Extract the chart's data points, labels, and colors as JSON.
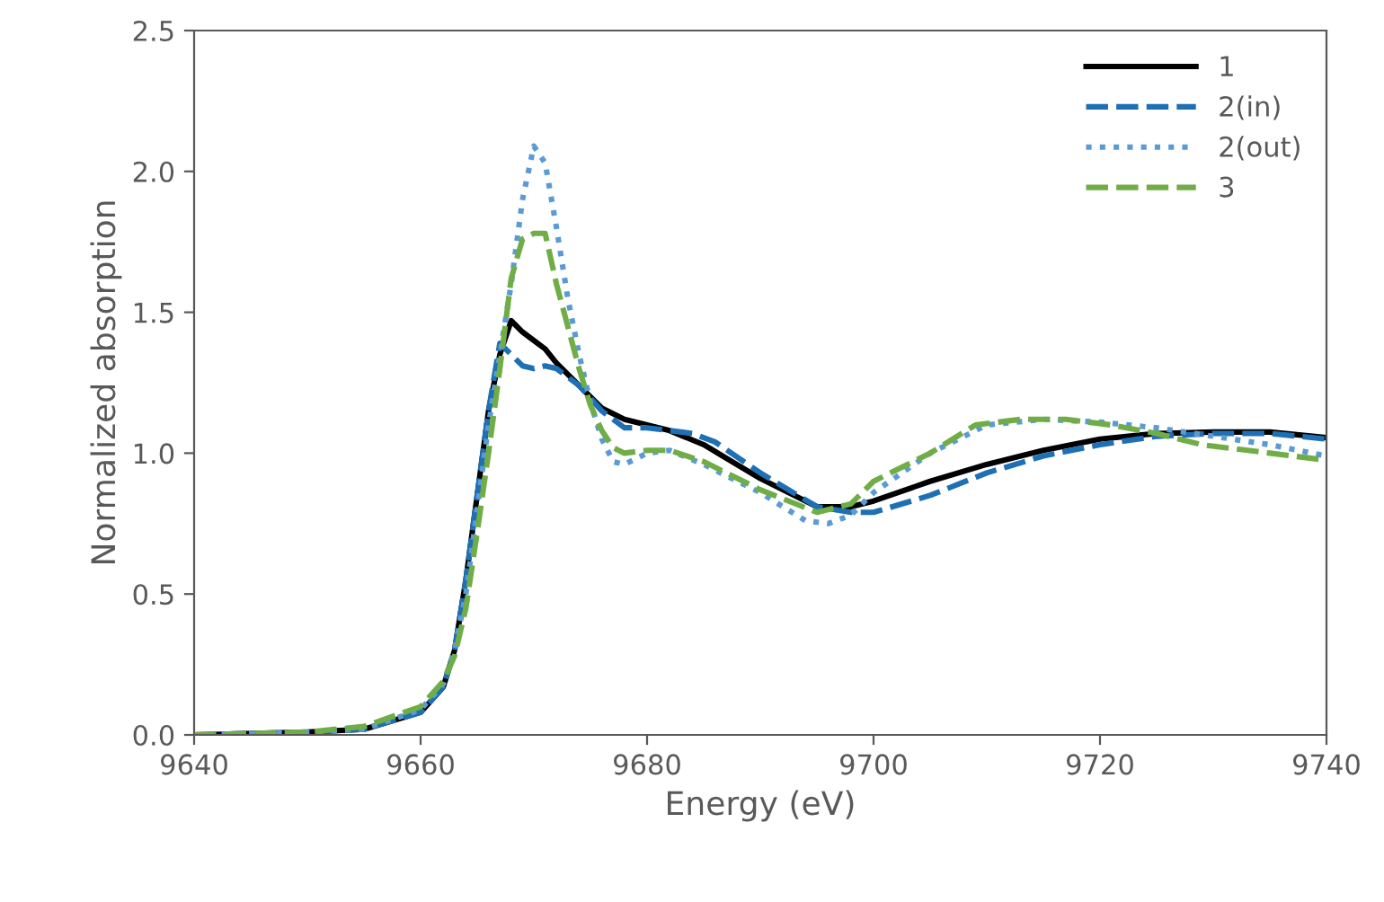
{
  "chart_data": {
    "type": "line",
    "xlabel": "Energy (eV)",
    "ylabel": "Normalized absorption",
    "xlim": [
      9640,
      9740
    ],
    "xticks": [
      9640,
      9660,
      9680,
      9700,
      9720,
      9740
    ],
    "ylim": [
      0,
      2.5
    ],
    "yticks": [
      {
        "value": 0,
        "label": "0.0"
      },
      {
        "value": 0.5,
        "label": "0.5"
      },
      {
        "value": 1,
        "label": "1.0"
      },
      {
        "value": 1.5,
        "label": "1.5"
      },
      {
        "value": 2,
        "label": "2.0"
      },
      {
        "value": 2.5,
        "label": "2.5"
      }
    ],
    "grid": false,
    "legend": "top right",
    "series": [
      {
        "name": "1",
        "color": "#000000",
        "line_style": "solid",
        "x": [
          9640,
          9650,
          9655,
          9660,
          9662,
          9663,
          9664,
          9665,
          9666,
          9667,
          9668,
          9669,
          9670,
          9671,
          9672,
          9674,
          9676,
          9678,
          9680,
          9682,
          9685,
          9690,
          9695,
          9698,
          9700,
          9705,
          9710,
          9715,
          9720,
          9725,
          9730,
          9735,
          9740
        ],
        "values": [
          0.0,
          0.01,
          0.02,
          0.08,
          0.17,
          0.3,
          0.55,
          0.85,
          1.15,
          1.35,
          1.47,
          1.43,
          1.4,
          1.37,
          1.32,
          1.24,
          1.16,
          1.12,
          1.1,
          1.08,
          1.03,
          0.91,
          0.81,
          0.81,
          0.83,
          0.9,
          0.96,
          1.01,
          1.05,
          1.07,
          1.075,
          1.075,
          1.055
        ]
      },
      {
        "name": "2(in)",
        "color": "#1f6fb4",
        "line_style": "dashed",
        "x": [
          9640,
          9650,
          9655,
          9660,
          9662,
          9663,
          9664,
          9665,
          9666,
          9667,
          9668,
          9669,
          9670,
          9671,
          9672,
          9674,
          9676,
          9678,
          9680,
          9684,
          9686,
          9690,
          9695,
          9698,
          9700,
          9705,
          9710,
          9715,
          9720,
          9725,
          9730,
          9735,
          9740
        ],
        "values": [
          0.0,
          0.01,
          0.02,
          0.08,
          0.17,
          0.3,
          0.55,
          0.85,
          1.15,
          1.39,
          1.35,
          1.31,
          1.3,
          1.31,
          1.3,
          1.24,
          1.15,
          1.09,
          1.09,
          1.07,
          1.04,
          0.93,
          0.81,
          0.79,
          0.79,
          0.85,
          0.93,
          0.99,
          1.03,
          1.06,
          1.07,
          1.07,
          1.05
        ]
      },
      {
        "name": "2(out)",
        "color": "#5b9bd5",
        "line_style": "dotted",
        "x": [
          9640,
          9650,
          9655,
          9660,
          9662,
          9663,
          9664,
          9665,
          9666,
          9667,
          9668,
          9669,
          9670,
          9671,
          9672,
          9673,
          9674,
          9675,
          9676,
          9677,
          9678,
          9680,
          9682,
          9685,
          9690,
          9694,
          9696,
          9698,
          9700,
          9705,
          9710,
          9715,
          9720,
          9725,
          9730,
          9735,
          9740
        ],
        "values": [
          0.0,
          0.01,
          0.02,
          0.09,
          0.18,
          0.3,
          0.5,
          0.8,
          1.1,
          1.35,
          1.6,
          1.9,
          2.09,
          2.03,
          1.8,
          1.55,
          1.35,
          1.18,
          1.05,
          0.97,
          0.96,
          1.0,
          1.01,
          0.96,
          0.86,
          0.76,
          0.75,
          0.78,
          0.86,
          1.0,
          1.1,
          1.12,
          1.11,
          1.09,
          1.06,
          1.03,
          0.99
        ]
      },
      {
        "name": "3",
        "color": "#70ad47",
        "line_style": "dashed",
        "x": [
          9640,
          9650,
          9655,
          9660,
          9662,
          9663,
          9664,
          9665,
          9666,
          9667,
          9668,
          9669,
          9670,
          9671,
          9672,
          9673,
          9674,
          9675,
          9676,
          9677,
          9678,
          9680,
          9682,
          9685,
          9690,
          9695,
          9698,
          9700,
          9705,
          9709,
          9713,
          9717,
          9721,
          9725,
          9729,
          9735,
          9740
        ],
        "values": [
          0.0,
          0.01,
          0.03,
          0.1,
          0.19,
          0.28,
          0.45,
          0.72,
          1.0,
          1.3,
          1.62,
          1.76,
          1.78,
          1.78,
          1.6,
          1.45,
          1.3,
          1.17,
          1.08,
          1.02,
          1.0,
          1.01,
          1.01,
          0.97,
          0.87,
          0.79,
          0.82,
          0.9,
          1.0,
          1.1,
          1.12,
          1.12,
          1.1,
          1.07,
          1.03,
          1.0,
          0.975
        ]
      }
    ]
  }
}
